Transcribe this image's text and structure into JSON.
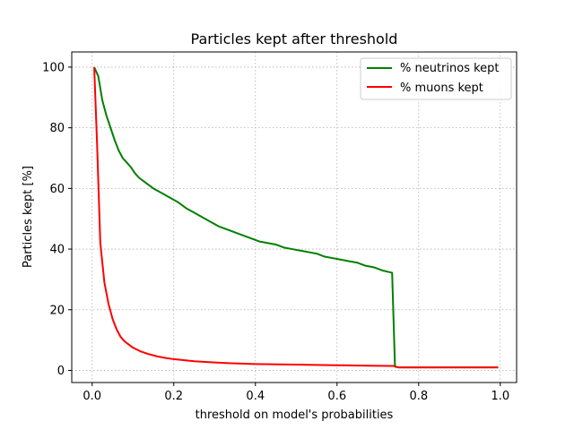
{
  "chart_data": {
    "type": "line",
    "title": "Particles kept after threshold",
    "xlabel": "threshold on model's probabilities",
    "ylabel": "Particles kept [%]",
    "xlim": [
      -0.05,
      1.04
    ],
    "ylim": [
      -4,
      105
    ],
    "xticks": [
      0.0,
      0.2,
      0.4,
      0.6,
      0.8,
      1.0
    ],
    "xtick_labels": [
      "0.0",
      "0.2",
      "0.4",
      "0.6",
      "0.8",
      "1.0"
    ],
    "yticks": [
      0,
      20,
      40,
      60,
      80,
      100
    ],
    "ytick_labels": [
      "0",
      "20",
      "40",
      "60",
      "80",
      "100"
    ],
    "grid": true,
    "legend_position": "top-right",
    "series": [
      {
        "name": "% neutrinos kept",
        "color": "#008000",
        "x": [
          0.005,
          0.015,
          0.025,
          0.035,
          0.045,
          0.055,
          0.065,
          0.075,
          0.085,
          0.095,
          0.105,
          0.115,
          0.13,
          0.15,
          0.17,
          0.19,
          0.21,
          0.23,
          0.25,
          0.27,
          0.29,
          0.31,
          0.33,
          0.35,
          0.37,
          0.39,
          0.41,
          0.43,
          0.45,
          0.47,
          0.49,
          0.51,
          0.53,
          0.55,
          0.57,
          0.59,
          0.61,
          0.63,
          0.65,
          0.67,
          0.69,
          0.71,
          0.725,
          0.735,
          0.742,
          0.75,
          0.8,
          0.85,
          0.9,
          0.95,
          0.995
        ],
        "y": [
          100,
          97,
          89,
          84,
          80,
          76,
          72.5,
          70,
          68.5,
          67,
          65,
          63.5,
          62,
          60,
          58.5,
          57,
          55.5,
          53.5,
          52,
          50.5,
          49,
          47.5,
          46.5,
          45.5,
          44.5,
          43.5,
          42.5,
          42,
          41.5,
          40.5,
          40,
          39.5,
          39,
          38.5,
          37.5,
          37,
          36.5,
          36,
          35.5,
          34.5,
          34,
          33,
          32.5,
          32.2,
          1.2,
          1.0,
          1.0,
          1.0,
          1.0,
          1.0,
          1.0
        ]
      },
      {
        "name": "% muons kept",
        "color": "#ff0000",
        "x": [
          0.005,
          0.012,
          0.02,
          0.03,
          0.04,
          0.05,
          0.06,
          0.07,
          0.08,
          0.09,
          0.1,
          0.12,
          0.14,
          0.16,
          0.18,
          0.2,
          0.25,
          0.3,
          0.35,
          0.4,
          0.5,
          0.6,
          0.7,
          0.74,
          0.75,
          0.8,
          0.9,
          0.995
        ],
        "y": [
          100,
          75,
          42,
          29,
          22,
          17,
          13.5,
          11,
          9.5,
          8.5,
          7.5,
          6.2,
          5.3,
          4.6,
          4.1,
          3.7,
          3.0,
          2.6,
          2.3,
          2.1,
          1.9,
          1.7,
          1.5,
          1.45,
          1.0,
          1.0,
          1.0,
          1.0
        ]
      }
    ]
  }
}
